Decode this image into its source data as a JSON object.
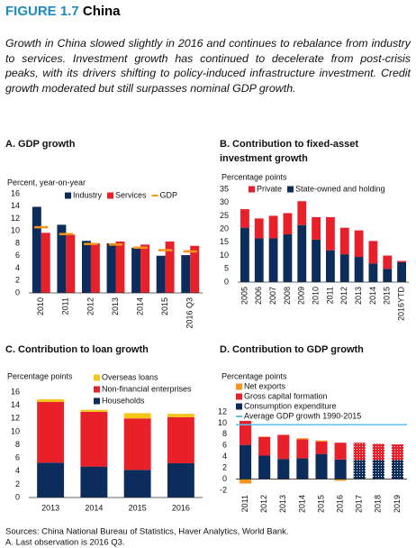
{
  "figure_label": "FIGURE 1.7",
  "figure_title": "China",
  "caption": "Growth in China slowed slightly in 2016 and continues to rebalance from industry to services. Investment growth has continued to decelerate from post-crisis peaks, with its drivers shifting to policy-induced infrastructure investment. Credit growth moderated but still surpasses nominal GDP growth.",
  "chart_data": [
    {
      "type": "bar",
      "title": "A. GDP growth",
      "y_label": "Percent, year-on-year",
      "categories": [
        "2010",
        "2011",
        "2012",
        "2013",
        "2014",
        "2015",
        "2016 Q3"
      ],
      "series": [
        {
          "name": "Industry",
          "color": "#0c2c5c",
          "values": [
            13.9,
            11.0,
            8.4,
            8.0,
            7.3,
            6.0,
            6.1
          ]
        },
        {
          "name": "Services",
          "color": "#e8202a",
          "values": [
            9.7,
            9.4,
            8.0,
            8.3,
            7.8,
            8.3,
            7.6
          ]
        },
        {
          "name": "GDP",
          "color": "#f7941d",
          "mark": "dash",
          "values": [
            10.6,
            9.5,
            7.9,
            7.8,
            7.3,
            6.9,
            6.7
          ]
        }
      ],
      "stacked": false,
      "xlabel_rotation": 90,
      "ylim": [
        0,
        16
      ],
      "yticks": [
        0,
        2,
        4,
        6,
        8,
        10,
        12,
        14,
        16
      ]
    },
    {
      "type": "bar",
      "title": "B. Contribution to fixed-asset investment growth",
      "y_label": "Percentage points",
      "categories": [
        "2005",
        "2006",
        "2007",
        "2008",
        "2009",
        "2010",
        "2011",
        "2012",
        "2013",
        "2014",
        "2015",
        "2016YTD"
      ],
      "series": [
        {
          "name": "State-owned and holding",
          "color": "#0c2c5c",
          "values": [
            20.5,
            16.5,
            16.5,
            18,
            21.5,
            16,
            12,
            10.5,
            9.5,
            7,
            5,
            7.5
          ]
        },
        {
          "name": "Private",
          "color": "#e8202a",
          "values": [
            7,
            7.5,
            8.5,
            8,
            9,
            8.5,
            12.5,
            10,
            10,
            8.5,
            5,
            0.5
          ]
        }
      ],
      "stacked": true,
      "xlabel_rotation": 90,
      "ylim": [
        0,
        35
      ],
      "yticks": [
        0,
        5,
        10,
        15,
        20,
        25,
        30,
        35
      ]
    },
    {
      "type": "bar",
      "title": "C. Contribution to loan growth",
      "y_label": "Percentage points",
      "categories": [
        "2013",
        "2014",
        "2015",
        "2016"
      ],
      "series": [
        {
          "name": "Households",
          "color": "#0c2c5c",
          "values": [
            5.3,
            4.7,
            4.2,
            5.2
          ]
        },
        {
          "name": "Non-financial enterprises",
          "color": "#e8202a",
          "values": [
            9.2,
            8.3,
            7.8,
            7.0
          ]
        },
        {
          "name": "Overseas loans",
          "color": "#f5c518",
          "values": [
            0.4,
            0.3,
            0.8,
            0.5
          ]
        }
      ],
      "stacked": true,
      "xlabel_rotation": 0,
      "ylim": [
        0,
        16
      ],
      "yticks": [
        0,
        2,
        4,
        6,
        8,
        10,
        12,
        14,
        16
      ]
    },
    {
      "type": "bar",
      "title": "D. Contribution to GDP growth",
      "y_label": "Percentage points",
      "categories": [
        "2011",
        "2012",
        "2013",
        "2014",
        "2015",
        "2016",
        "2017",
        "2018",
        "2019"
      ],
      "series": [
        {
          "name": "Consumption expenditure",
          "color": "#0c2c5c",
          "values": [
            6.1,
            4.2,
            3.6,
            3.7,
            4.5,
            3.5,
            3.4,
            3.4,
            3.4
          ]
        },
        {
          "name": "Gross capital formation",
          "color": "#e8202a",
          "values": [
            4.3,
            3.3,
            4.3,
            3.4,
            2.2,
            3.0,
            3.1,
            2.9,
            2.8
          ]
        },
        {
          "name": "Net exports",
          "color": "#f7941d",
          "values": [
            -0.8,
            0.1,
            -0.1,
            0.2,
            0.2,
            -0.3,
            0,
            0,
            0
          ]
        }
      ],
      "reference_line": {
        "name": "Average GDP growth 1990-2015",
        "color": "#5bc0eb",
        "value": 9.7
      },
      "hatched": [
        false,
        false,
        false,
        false,
        false,
        false,
        true,
        true,
        true
      ],
      "stacked": true,
      "xlabel_rotation": 90,
      "ylim": [
        -2,
        12
      ],
      "yticks": [
        -2,
        0,
        2,
        4,
        6,
        8,
        10,
        12
      ]
    }
  ],
  "notes": [
    "Sources: China National Bureau of Statistics, Haver Analytics, World Bank.",
    "A. Last observation is 2016 Q3."
  ]
}
